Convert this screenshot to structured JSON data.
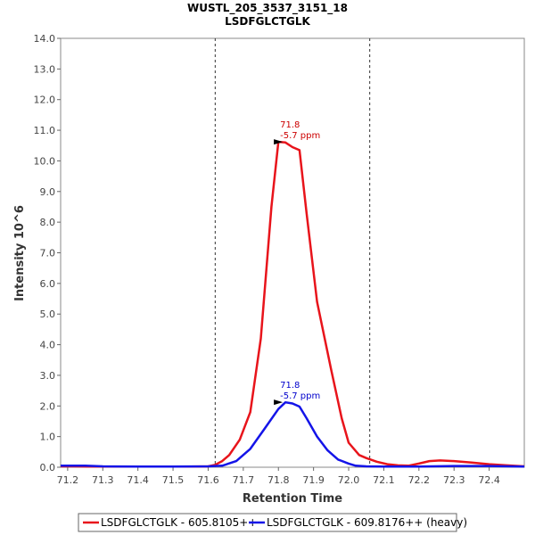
{
  "chart_data": {
    "type": "line",
    "title": "WUSTL_205_3537_3151_18",
    "subtitle": "LSDFGLCTGLK",
    "xlabel": "Retention Time",
    "ylabel": "Intensity 10^6",
    "xlim": [
      71.18,
      72.5
    ],
    "ylim": [
      0,
      14.0
    ],
    "x_ticks": [
      "71.2",
      "71.3",
      "71.4",
      "71.5",
      "71.6",
      "71.7",
      "71.8",
      "71.9",
      "72.0",
      "72.1",
      "72.2",
      "72.3",
      "72.4"
    ],
    "x_tick_values": [
      71.2,
      71.3,
      71.4,
      71.5,
      71.6,
      71.7,
      71.8,
      71.9,
      72.0,
      72.1,
      72.2,
      72.3,
      72.4
    ],
    "y_ticks": [
      "0.0",
      "1.0",
      "2.0",
      "3.0",
      "4.0",
      "5.0",
      "6.0",
      "7.0",
      "8.0",
      "9.0",
      "10.0",
      "11.0",
      "12.0",
      "13.0",
      "14.0"
    ],
    "y_tick_values": [
      0,
      1,
      2,
      3,
      4,
      5,
      6,
      7,
      8,
      9,
      10,
      11,
      12,
      13,
      14
    ],
    "boundaries": [
      71.62,
      72.06
    ],
    "series": [
      {
        "name": "LSDFGLCTGLK - 605.8105++",
        "color": "#e8141b",
        "x": [
          71.18,
          71.22,
          71.26,
          71.35,
          71.45,
          71.55,
          71.6,
          71.62,
          71.64,
          71.66,
          71.69,
          71.72,
          71.75,
          71.78,
          71.8,
          71.82,
          71.84,
          71.86,
          71.88,
          71.91,
          71.95,
          71.98,
          72.0,
          72.03,
          72.05,
          72.08,
          72.11,
          72.14,
          72.17,
          72.2,
          72.23,
          72.26,
          72.3,
          72.35,
          72.4,
          72.45,
          72.5
        ],
        "y": [
          0.03,
          0.03,
          0.02,
          0.02,
          0.02,
          0.02,
          0.03,
          0.08,
          0.2,
          0.4,
          0.9,
          1.8,
          4.2,
          8.5,
          10.62,
          10.6,
          10.45,
          10.35,
          8.3,
          5.4,
          3.2,
          1.6,
          0.8,
          0.4,
          0.3,
          0.18,
          0.1,
          0.06,
          0.05,
          0.12,
          0.2,
          0.22,
          0.2,
          0.15,
          0.1,
          0.06,
          0.03
        ]
      },
      {
        "name": "LSDFGLCTGLK - 609.8176++ (heavy)",
        "color": "#1414e8",
        "x": [
          71.18,
          71.25,
          71.3,
          71.4,
          71.5,
          71.6,
          71.64,
          71.68,
          71.72,
          71.76,
          71.8,
          71.82,
          71.84,
          71.86,
          71.88,
          71.91,
          71.94,
          71.97,
          72.0,
          72.02,
          72.05,
          72.1,
          72.2,
          72.3,
          72.4,
          72.5
        ],
        "y": [
          0.05,
          0.05,
          0.03,
          0.02,
          0.02,
          0.03,
          0.05,
          0.2,
          0.6,
          1.25,
          1.9,
          2.12,
          2.08,
          1.98,
          1.6,
          1.0,
          0.55,
          0.25,
          0.12,
          0.05,
          0.03,
          0.02,
          0.02,
          0.04,
          0.04,
          0.02
        ]
      }
    ],
    "annotations": [
      {
        "series": 0,
        "x": 71.82,
        "y": 10.62,
        "line1": "71.8",
        "line2": "-5.7 ppm",
        "color": "#cc0000"
      },
      {
        "series": 1,
        "x": 71.82,
        "y": 2.12,
        "line1": "71.8",
        "line2": "-5.7 ppm",
        "color": "#0000cc"
      }
    ],
    "legend_position": "bottom"
  }
}
